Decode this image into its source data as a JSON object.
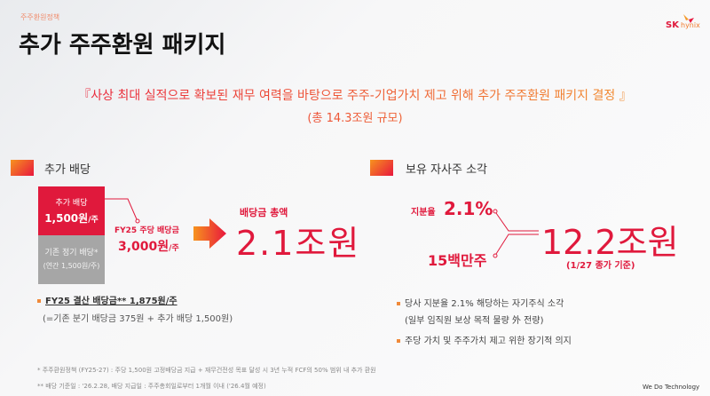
{
  "header": {
    "breadcrumb": "주주환원정책",
    "title": "추가 주주환원 패키지",
    "logo_sk": "SK",
    "logo_hynix": "hynix"
  },
  "banner": {
    "line1": "『사상 최대 실적으로 확보된 재무 여력을 바탕으로 주주-기업가치 제고 위해 추가 주주환원 패키지 결정 』",
    "line2": "(총 14.3조원 규모)"
  },
  "dividend": {
    "section_title": "추가 배당",
    "additional_label": "추가 배당",
    "additional_value": "1,500원",
    "additional_unit": "/주",
    "regular_label": "기존 정기 배당*",
    "regular_value": "(연간 1,500원/주)",
    "fy25_label": "FY25 주당 배당금",
    "fy25_value": "3,000원",
    "fy25_unit": "/주",
    "total_label": "배당금 총액",
    "total_value": "2.1조원",
    "bullet1": "FY25 결산 배당금** 1,875원/주",
    "bullet1_sub": "(=기존 분기 배당금 375원 + 추가 배당 1,500원)"
  },
  "buyback": {
    "section_title": "보유 자사주 소각",
    "stake_label": "지분율",
    "stake_value": "2.1%",
    "shares_value": "15백만주",
    "total_value": "12.2조원",
    "total_note": "(1/27 종가 기준)",
    "bullet1": "당사 지분율 2.1% 해당하는 자기주식 소각",
    "bullet1_sub": "(일부 임직원 보상 목적 물량 外 전량)",
    "bullet2": "주당 가치 및 주주가치 제고 위한 장기적 의지"
  },
  "footnotes": [
    "* 주주환원정책 (FY25-27) : 주당 1,500원 고정배당금 지급 + 재무건전성 목표 달성 시 3년 누적 FCF의 50% 범위 내 추가 환원",
    "** 배당 기준일 : '26.2.28,  배당 지급일 : 주주총회일로부터 1개월 이내 ('26.4월 예정)"
  ],
  "footer_brand": "We Do Technology",
  "colors": {
    "accent_red": "#e0193c",
    "accent_orange": "#f39a2b",
    "gray_box": "#a6a6a6"
  }
}
